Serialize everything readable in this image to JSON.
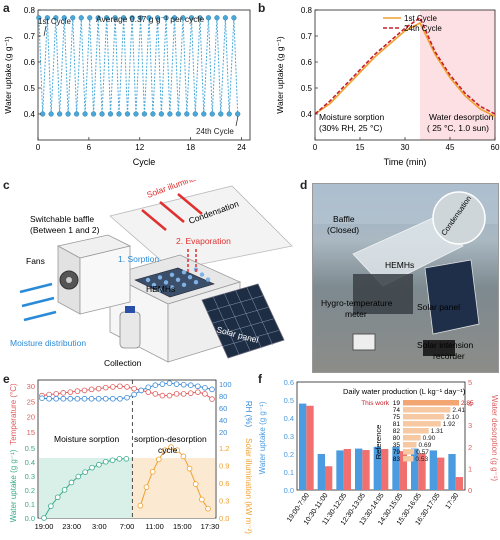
{
  "panels": {
    "a": "a",
    "b": "b",
    "c": "c",
    "d": "d",
    "e": "e",
    "f": "f"
  },
  "panel_a": {
    "annot_first": "1st Cycle",
    "annot_last": "24th Cycle",
    "annot_avg": "Average 0.37 g g⁻¹ per cycle",
    "xlabel": "Cycle",
    "ylabel": "Water uptake (g g⁻¹)"
  },
  "panel_b": {
    "xlabel": "Time (min)",
    "ylabel": "Water uptake (g g⁻¹)",
    "legend": [
      "1st Cycle",
      "24th Cycle"
    ],
    "sorption_label_1": "Moisture sorption",
    "sorption_label_2": "(30% RH, 25 °C)",
    "desorption_label_1": "Water desorption",
    "desorption_label_2": "( 25 °C, 1.0 sun)"
  },
  "panel_c": {
    "solar": "Solar illumination",
    "condensation": "Condensation",
    "baffle_1": "Switchable baffle",
    "baffle_2": "(Between 1 and 2)",
    "evaporation": "2. Evaporation",
    "sorption": "1. Sorption",
    "fans": "Fans",
    "hemhs": "HEMHs",
    "moisture": "Moisture distribution",
    "collection": "Collection",
    "solar_panel": "Solar panel"
  },
  "panel_d": {
    "baffle_1": "Baffle",
    "baffle_2": "(Closed)",
    "condensation": "Condensation",
    "hemhs": "HEMHs",
    "hygro_1": "Hygro-temperature",
    "hygro_2": "meter",
    "solar_panel": "Solar panel",
    "recorder_1": "Solar intension",
    "recorder_2": "recorder"
  },
  "panel_e": {
    "ylabel_left_top": "Temperature (°C)",
    "ylabel_left_bottom": "Water uptake (g g⁻¹)",
    "ylabel_right_top": "RH (%)",
    "ylabel_right_bottom": "Solar illumination (kW m⁻²)",
    "label_sorption": "Moisture sorption",
    "label_cycle_1": "sorption-desorption",
    "label_cycle_2": "cycle"
  },
  "panel_f": {
    "ylabel_left": "Water uptake (g g⁻¹)",
    "ylabel_right": "Water desorption (g g⁻¹)",
    "inset_title": "Daily water production (L kg⁻¹ day⁻¹)",
    "inset_ref_label": "Reference",
    "this_work": "This work"
  },
  "colors": {
    "cyan": "#4aa8d8",
    "orange": "#f0a030",
    "darkred": "#c8202a",
    "blue_bar": "#4a9be0",
    "red_bar": "#f07070",
    "pink_bg": "#fde0e4",
    "teal": "#3aaa8a",
    "temp_red": "#e05a5a",
    "rh_blue": "#3a8ad8"
  },
  "chart_data": [
    {
      "id": "a",
      "type": "line",
      "xlim": [
        0,
        25
      ],
      "ylim": [
        0.3,
        0.8
      ],
      "xticks": [
        0,
        6,
        12,
        18,
        24
      ],
      "yticks": [
        0.4,
        0.5,
        0.6,
        0.7,
        0.8
      ],
      "xtick_labels": [
        "0",
        "6",
        "12",
        "18",
        "24"
      ],
      "ytick_labels": [
        "0.4",
        "0.5",
        "0.6",
        "0.7",
        "0.8"
      ],
      "high": 0.77,
      "low": 0.4,
      "cycles": 24
    },
    {
      "id": "b",
      "type": "line",
      "xlim": [
        0,
        60
      ],
      "ylim": [
        0.3,
        0.8
      ],
      "xticks": [
        0,
        15,
        30,
        45,
        60
      ],
      "yticks": [
        0.4,
        0.5,
        0.6,
        0.7,
        0.8
      ],
      "xtick_labels": [
        "0",
        "15",
        "30",
        "45",
        "60"
      ],
      "ytick_labels": [
        "0.4",
        "0.5",
        "0.6",
        "0.7",
        "0.8"
      ],
      "shade_from": 35,
      "series": [
        {
          "name": "1st Cycle",
          "x": [
            0,
            5,
            10,
            15,
            20,
            25,
            30,
            35,
            40,
            45,
            50,
            55,
            60
          ],
          "y": [
            0.4,
            0.44,
            0.5,
            0.56,
            0.62,
            0.67,
            0.72,
            0.75,
            0.63,
            0.54,
            0.47,
            0.42,
            0.39
          ]
        },
        {
          "name": "24th Cycle",
          "x": [
            0,
            5,
            10,
            15,
            20,
            25,
            30,
            35,
            40,
            45,
            50,
            55,
            60
          ],
          "y": [
            0.4,
            0.45,
            0.51,
            0.57,
            0.63,
            0.68,
            0.73,
            0.77,
            0.64,
            0.55,
            0.48,
            0.43,
            0.4
          ]
        }
      ]
    },
    {
      "id": "e",
      "type": "line",
      "xtick_labels": [
        "19:00",
        "23:00",
        "3:00",
        "7:00",
        "11:00",
        "15:00",
        "17:30"
      ],
      "top_left_ticks": [
        "15",
        "20",
        "25",
        "30"
      ],
      "top_right_ticks": [
        "20",
        "40",
        "60",
        "80",
        "100"
      ],
      "bottom_left_ticks": [
        "0.0",
        "0.1",
        "0.2",
        "0.3",
        "0.4",
        "0.5"
      ],
      "bottom_right_ticks": [
        "0.0",
        "0.3",
        "0.6",
        "0.9",
        "1.2"
      ],
      "temperature": [
        25.5,
        25.8,
        26.0,
        26.3,
        26.5,
        26.8,
        27.0,
        27.3,
        27.5,
        27.8,
        28.0,
        28.2,
        28.0,
        27.5,
        27.0,
        26.5,
        26.0,
        25.5,
        25.5,
        26.0,
        26.0,
        26.2,
        26.5,
        26.0,
        24.5
      ],
      "rh": [
        65,
        64,
        64,
        64,
        64,
        64,
        64,
        64,
        64,
        64,
        64,
        64,
        66,
        72,
        80,
        86,
        90,
        92,
        94,
        92,
        91,
        90,
        88,
        85,
        82
      ],
      "uptake": [
        0.0,
        0.08,
        0.14,
        0.19,
        0.24,
        0.28,
        0.31,
        0.34,
        0.36,
        0.38,
        0.39,
        0.4,
        0.4
      ],
      "solar": [
        0.2,
        0.5,
        0.75,
        0.95,
        1.1,
        1.15,
        1.1,
        1.0,
        0.8,
        0.55,
        0.3,
        0.15
      ]
    },
    {
      "id": "f",
      "type": "bar",
      "categories": [
        "19:00-7:00",
        "10:30-11:00",
        "11:30-12:05",
        "12:30-13:05",
        "13:30-14:05",
        "14:30-15:05",
        "15:30-16:05",
        "16:30-17:05",
        "17:30"
      ],
      "ylim_left": [
        0.0,
        0.6
      ],
      "ylim_right": [
        0.0,
        5.0
      ],
      "yticks_left": [
        "0.0",
        "0.1",
        "0.2",
        "0.3",
        "0.4",
        "0.5",
        "0.6"
      ],
      "yticks_right": [
        "0",
        "1",
        "2",
        "3",
        "4",
        "5"
      ],
      "uptake": [
        0.48,
        0.2,
        0.22,
        0.23,
        0.24,
        0.24,
        0.23,
        0.22,
        0.2
      ],
      "desorption": [
        3.9,
        1.1,
        1.9,
        1.85,
        1.9,
        1.8,
        1.7,
        1.5,
        0.6
      ],
      "inset": {
        "refs": [
          "19",
          "74",
          "75",
          "81",
          "82",
          "80",
          "35",
          "79",
          "83"
        ],
        "values": [
          2.85,
          2.41,
          2.1,
          1.92,
          1.31,
          0.9,
          0.69,
          0.57,
          0.53
        ],
        "value_labels": [
          "2.85",
          "2.41",
          "2.10",
          "1.92",
          "1.31",
          "0.90",
          "0.69",
          "0.57",
          "0.53"
        ]
      }
    }
  ]
}
